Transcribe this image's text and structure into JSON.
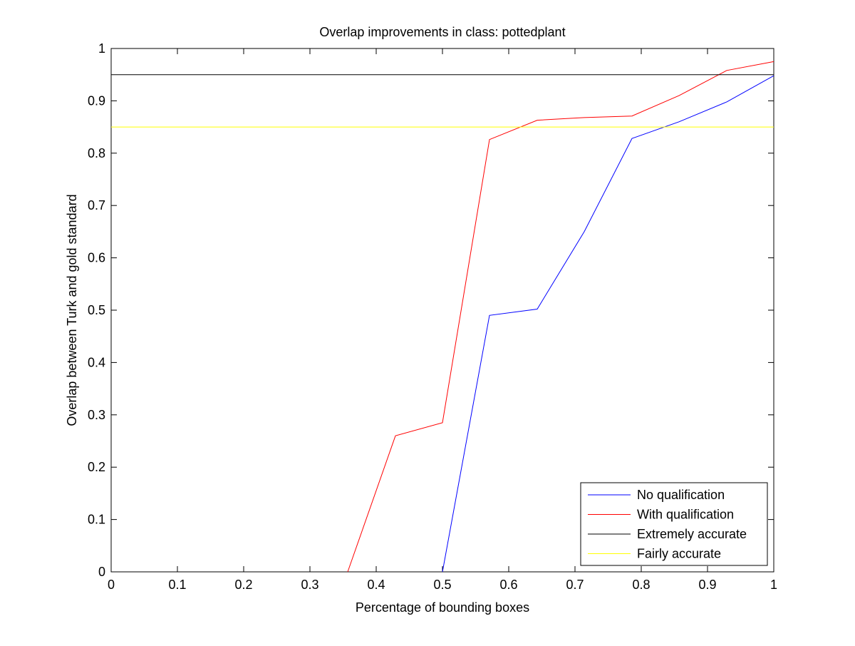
{
  "chart_data": {
    "type": "line",
    "title": "Overlap improvements in class: pottedplant",
    "xlabel": "Percentage of bounding boxes",
    "ylabel": "Overlap between Turk and gold standard",
    "xlim": [
      0,
      1
    ],
    "ylim": [
      0,
      1
    ],
    "xticks": [
      "0",
      "0.1",
      "0.2",
      "0.3",
      "0.4",
      "0.5",
      "0.6",
      "0.7",
      "0.8",
      "0.9",
      "1"
    ],
    "yticks": [
      "0",
      "0.1",
      "0.2",
      "0.3",
      "0.4",
      "0.5",
      "0.6",
      "0.7",
      "0.8",
      "0.9",
      "1"
    ],
    "grid": false,
    "legend_position": "bottom-right",
    "series": [
      {
        "name": "No qualification",
        "color": "#0000ff",
        "x": [
          0.5,
          0.571,
          0.643,
          0.714,
          0.786,
          0.857,
          0.929,
          1.0
        ],
        "y": [
          0.0,
          0.49,
          0.502,
          0.65,
          0.828,
          0.86,
          0.898,
          0.948
        ]
      },
      {
        "name": "With qualification",
        "color": "#ff0000",
        "x": [
          0.357,
          0.429,
          0.5,
          0.571,
          0.643,
          0.714,
          0.786,
          0.857,
          0.929,
          1.0
        ],
        "y": [
          0.0,
          0.26,
          0.285,
          0.826,
          0.863,
          0.868,
          0.871,
          0.91,
          0.958,
          0.975
        ]
      },
      {
        "name": "Extremely accurate",
        "color": "#000000",
        "x": [
          0,
          1
        ],
        "y": [
          0.95,
          0.95
        ]
      },
      {
        "name": "Fairly accurate",
        "color": "#ffff00",
        "x": [
          0,
          1
        ],
        "y": [
          0.85,
          0.85
        ]
      }
    ]
  }
}
